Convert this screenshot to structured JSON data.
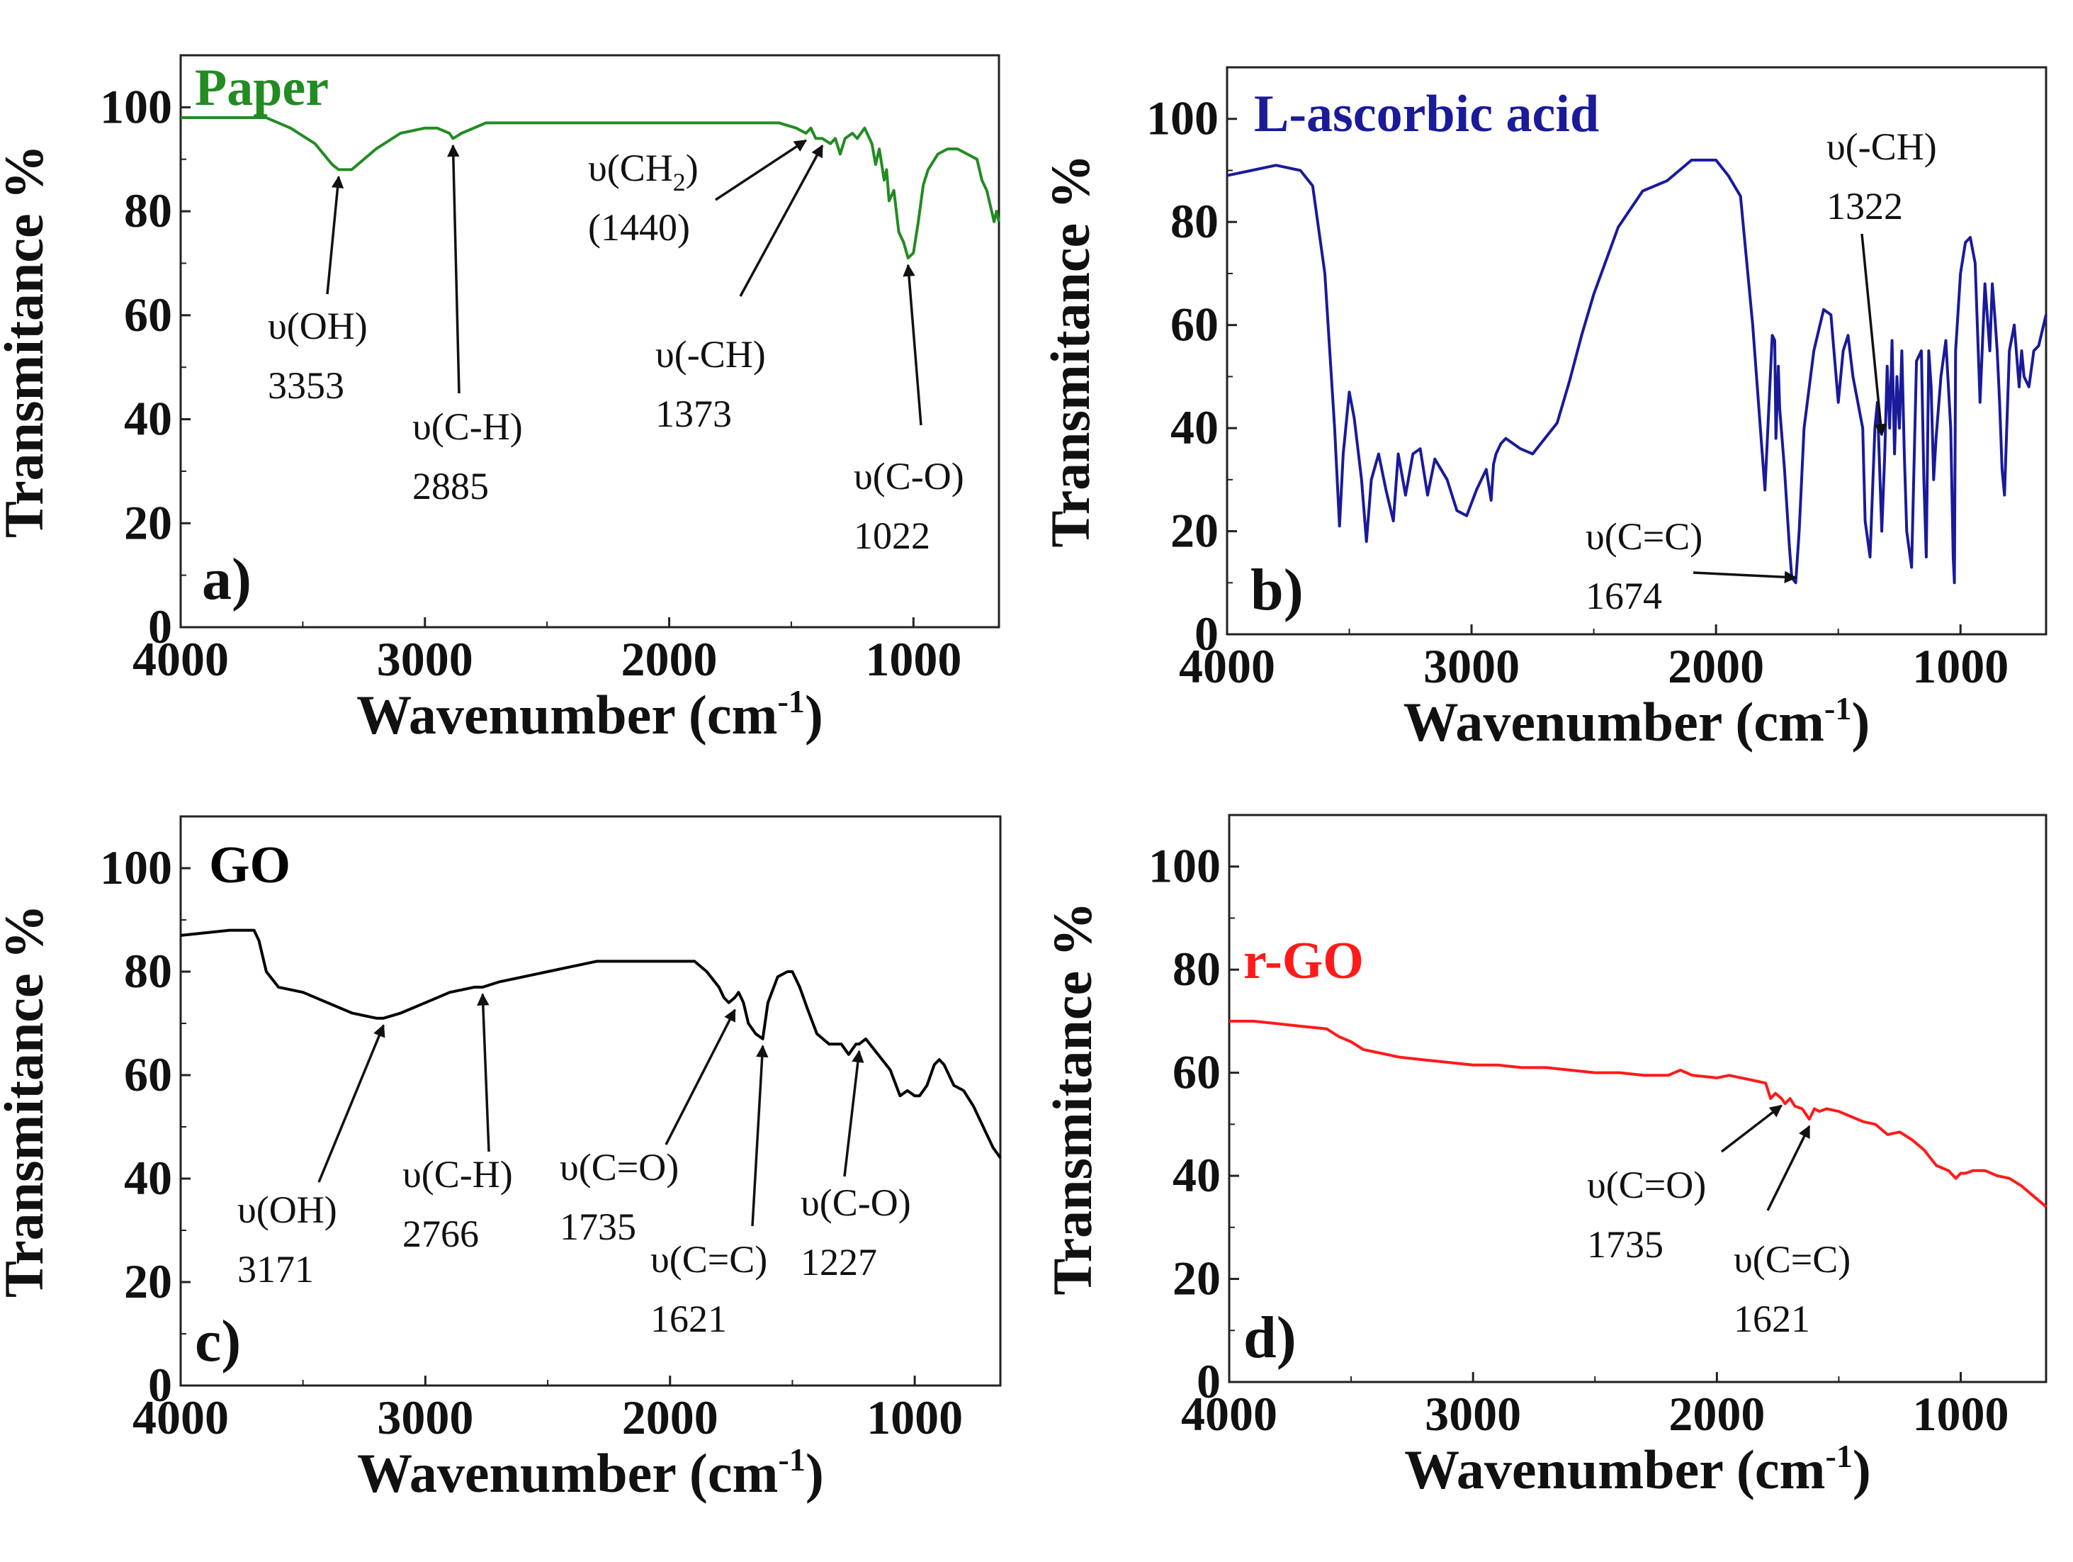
{
  "chart_data": [
    {
      "type": "line",
      "panel": "a)",
      "title": "Paper",
      "color": "#228b22",
      "xlabel": "Wavenumber (cm-1)",
      "ylabel": "Transmitance %",
      "xlim": [
        4000,
        650
      ],
      "ylim": [
        0,
        110
      ],
      "xticks": [
        4000,
        3000,
        2000,
        1000
      ],
      "yticks": [
        0,
        20,
        40,
        60,
        80,
        100
      ],
      "series": [
        {
          "name": "Paper",
          "x": [
            4000,
            3650,
            3550,
            3450,
            3380,
            3353,
            3300,
            3200,
            3100,
            3000,
            2950,
            2900,
            2885,
            2850,
            2750,
            2500,
            2000,
            1700,
            1550,
            1480,
            1440,
            1420,
            1400,
            1373,
            1340,
            1320,
            1300,
            1280,
            1250,
            1230,
            1200,
            1170,
            1155,
            1140,
            1120,
            1110,
            1100,
            1080,
            1060,
            1040,
            1022,
            1000,
            980,
            960,
            940,
            900,
            860,
            820,
            780,
            740,
            720,
            700,
            680,
            670,
            660,
            650
          ],
          "y": [
            98,
            98,
            96,
            93,
            89,
            88,
            88,
            92,
            95,
            96,
            96,
            95,
            94,
            95,
            97,
            97,
            97,
            97,
            97,
            96,
            95,
            96,
            94,
            94,
            93,
            94,
            91,
            94,
            95,
            94,
            96,
            93,
            89,
            92,
            86,
            88,
            82,
            84,
            76,
            74,
            71,
            72,
            78,
            85,
            88,
            91,
            92,
            92,
            91,
            90,
            86,
            84,
            80,
            78,
            80,
            78
          ]
        }
      ],
      "annotations": [
        {
          "label": "υ(OH)",
          "value": "3353",
          "x": 3353,
          "y": 88
        },
        {
          "label": "υ(C-H)",
          "value": "2885",
          "x": 2885,
          "y": 94
        },
        {
          "label": "υ(CH2)",
          "label_main": "υ(CH",
          "label_sub": "2",
          "label_close": ")",
          "value": "(1440)",
          "x": 1440,
          "y": 95
        },
        {
          "label": "υ(-CH)",
          "value": "1373",
          "x": 1373,
          "y": 94
        },
        {
          "label": "υ(C-O)",
          "value": "1022",
          "x": 1022,
          "y": 71
        }
      ]
    },
    {
      "type": "line",
      "panel": "b)",
      "title": "L-ascorbic acid",
      "color": "#1a1a9a",
      "xlabel": "Wavenumber (cm-1)",
      "ylabel": "Transmitance %",
      "xlim": [
        4000,
        650
      ],
      "ylim": [
        0,
        110
      ],
      "xticks": [
        4000,
        3000,
        2000,
        1000
      ],
      "yticks": [
        0,
        20,
        40,
        60,
        80,
        100
      ],
      "series": [
        {
          "name": "L-ascorbic acid",
          "x": [
            4000,
            3900,
            3800,
            3700,
            3650,
            3600,
            3560,
            3540,
            3525,
            3500,
            3480,
            3450,
            3430,
            3410,
            3380,
            3350,
            3320,
            3300,
            3270,
            3240,
            3210,
            3180,
            3150,
            3100,
            3060,
            3020,
            2980,
            2940,
            2920,
            2910,
            2900,
            2880,
            2860,
            2800,
            2750,
            2700,
            2650,
            2600,
            2550,
            2500,
            2400,
            2300,
            2200,
            2100,
            2000,
            1950,
            1900,
            1850,
            1800,
            1770,
            1760,
            1755,
            1745,
            1740,
            1720,
            1700,
            1690,
            1674,
            1660,
            1640,
            1600,
            1560,
            1530,
            1500,
            1480,
            1460,
            1440,
            1420,
            1400,
            1390,
            1370,
            1350,
            1340,
            1322,
            1310,
            1300,
            1290,
            1280,
            1270,
            1260,
            1250,
            1240,
            1230,
            1220,
            1200,
            1180,
            1160,
            1150,
            1140,
            1130,
            1120,
            1110,
            1100,
            1080,
            1060,
            1040,
            1030,
            1025,
            1020,
            1000,
            980,
            960,
            940,
            920,
            900,
            880,
            870,
            860,
            850,
            840,
            830,
            820,
            800,
            780,
            760,
            750,
            740,
            720,
            700,
            680,
            660,
            650
          ],
          "y": [
            89,
            90,
            91,
            90,
            87,
            70,
            40,
            21,
            35,
            47,
            42,
            30,
            18,
            30,
            35,
            28,
            22,
            35,
            27,
            35,
            36,
            27,
            34,
            30,
            24,
            23,
            28,
            32,
            26,
            33,
            35,
            37,
            38,
            36,
            35,
            38,
            41,
            49,
            58,
            66,
            79,
            86,
            88,
            92,
            92,
            89,
            85,
            60,
            28,
            58,
            57,
            38,
            52,
            44,
            32,
            17,
            11,
            10,
            20,
            40,
            55,
            63,
            62,
            45,
            55,
            58,
            50,
            45,
            40,
            22,
            15,
            40,
            45,
            20,
            35,
            52,
            40,
            57,
            35,
            50,
            40,
            55,
            35,
            20,
            13,
            53,
            55,
            30,
            15,
            55,
            48,
            30,
            38,
            50,
            57,
            40,
            15,
            10,
            55,
            70,
            76,
            77,
            72,
            45,
            68,
            55,
            68,
            62,
            55,
            45,
            32,
            27,
            55,
            60,
            48,
            55,
            50,
            48,
            55,
            56,
            60,
            62
          ]
        }
      ],
      "annotations": [
        {
          "label": "υ(-CH)",
          "value": "1322",
          "x": 1322,
          "y": 40
        },
        {
          "label": "υ(C=C)",
          "value": "1674",
          "x": 1674,
          "y": 11
        }
      ]
    },
    {
      "type": "line",
      "panel": "c)",
      "title": "GO",
      "color": "#000000",
      "xlabel": "Wavenumber (cm-1)",
      "ylabel": "Transmitance %",
      "xlim": [
        4000,
        650
      ],
      "ylim": [
        0,
        110
      ],
      "xticks": [
        4000,
        3000,
        2000,
        1000
      ],
      "yticks": [
        0,
        20,
        40,
        60,
        80,
        100
      ],
      "series": [
        {
          "name": "GO",
          "x": [
            4000,
            3800,
            3700,
            3680,
            3650,
            3600,
            3500,
            3400,
            3300,
            3200,
            3171,
            3100,
            3000,
            2900,
            2800,
            2766,
            2700,
            2600,
            2500,
            2400,
            2300,
            2200,
            2100,
            2000,
            1900,
            1850,
            1800,
            1780,
            1760,
            1735,
            1720,
            1700,
            1680,
            1650,
            1621,
            1600,
            1560,
            1520,
            1500,
            1470,
            1440,
            1400,
            1350,
            1300,
            1270,
            1240,
            1227,
            1200,
            1150,
            1100,
            1060,
            1030,
            1000,
            980,
            950,
            920,
            900,
            880,
            860,
            840,
            800,
            760,
            720,
            680,
            650
          ],
          "y": [
            87,
            88,
            88,
            86,
            80,
            77,
            76,
            74,
            72,
            71,
            71,
            72,
            74,
            76,
            77,
            77,
            78,
            79,
            80,
            81,
            82,
            82,
            82,
            82,
            82,
            80,
            77,
            75,
            74,
            75,
            76,
            74,
            70,
            68,
            67,
            74,
            79,
            80,
            80,
            77,
            73,
            68,
            66,
            66,
            64,
            66,
            66,
            67,
            64,
            61,
            56,
            57,
            56,
            56,
            58,
            62,
            63,
            62,
            60,
            58,
            57,
            54,
            50,
            46,
            44
          ]
        }
      ],
      "annotations": [
        {
          "label": "υ(OH)",
          "value": "3171",
          "x": 3171,
          "y": 71
        },
        {
          "label": "υ(C-H)",
          "value": "2766",
          "x": 2766,
          "y": 77
        },
        {
          "label": "υ(C=O)",
          "value": "1735",
          "x": 1735,
          "y": 74
        },
        {
          "label": "υ(C=C)",
          "value": "1621",
          "x": 1621,
          "y": 67
        },
        {
          "label": "υ(C-O)",
          "value": "1227",
          "x": 1227,
          "y": 66
        }
      ]
    },
    {
      "type": "line",
      "panel": "d)",
      "title": "r-GO",
      "color": "#ff1a1a",
      "xlabel": "Wavenumber (cm-1)",
      "ylabel": "Transmitance %",
      "xlim": [
        4000,
        650
      ],
      "ylim": [
        0,
        110
      ],
      "xticks": [
        4000,
        3000,
        2000,
        1000
      ],
      "yticks": [
        0,
        20,
        40,
        60,
        80,
        100
      ],
      "series": [
        {
          "name": "r-GO",
          "x": [
            4000,
            3900,
            3800,
            3700,
            3600,
            3550,
            3500,
            3450,
            3400,
            3300,
            3200,
            3100,
            3000,
            2900,
            2800,
            2700,
            2600,
            2500,
            2400,
            2300,
            2200,
            2150,
            2100,
            2000,
            1950,
            1900,
            1850,
            1800,
            1780,
            1760,
            1735,
            1720,
            1700,
            1680,
            1650,
            1621,
            1600,
            1580,
            1550,
            1500,
            1450,
            1400,
            1350,
            1300,
            1250,
            1200,
            1150,
            1100,
            1050,
            1020,
            1000,
            980,
            950,
            900,
            850,
            800,
            750,
            700,
            650
          ],
          "y": [
            70,
            70,
            69.5,
            69,
            68.5,
            67,
            66,
            64.5,
            64,
            63,
            62.5,
            62,
            61.5,
            61.5,
            61,
            61,
            60.5,
            60,
            60,
            59.5,
            59.5,
            60.5,
            59.5,
            59,
            59.5,
            59,
            58.5,
            58,
            55,
            56,
            55,
            54,
            55,
            53.5,
            53,
            51,
            53,
            52.5,
            53,
            52.5,
            51.5,
            50.5,
            50,
            48,
            48.5,
            47,
            45,
            42,
            41,
            39.5,
            40.5,
            40.5,
            41,
            41,
            40,
            39.5,
            38,
            36,
            34
          ]
        }
      ],
      "annotations": [
        {
          "label": "υ(C=O)",
          "value": "1735",
          "x": 1735,
          "y": 55
        },
        {
          "label": "υ(C=C)",
          "value": "1621",
          "x": 1621,
          "y": 51
        }
      ]
    }
  ]
}
